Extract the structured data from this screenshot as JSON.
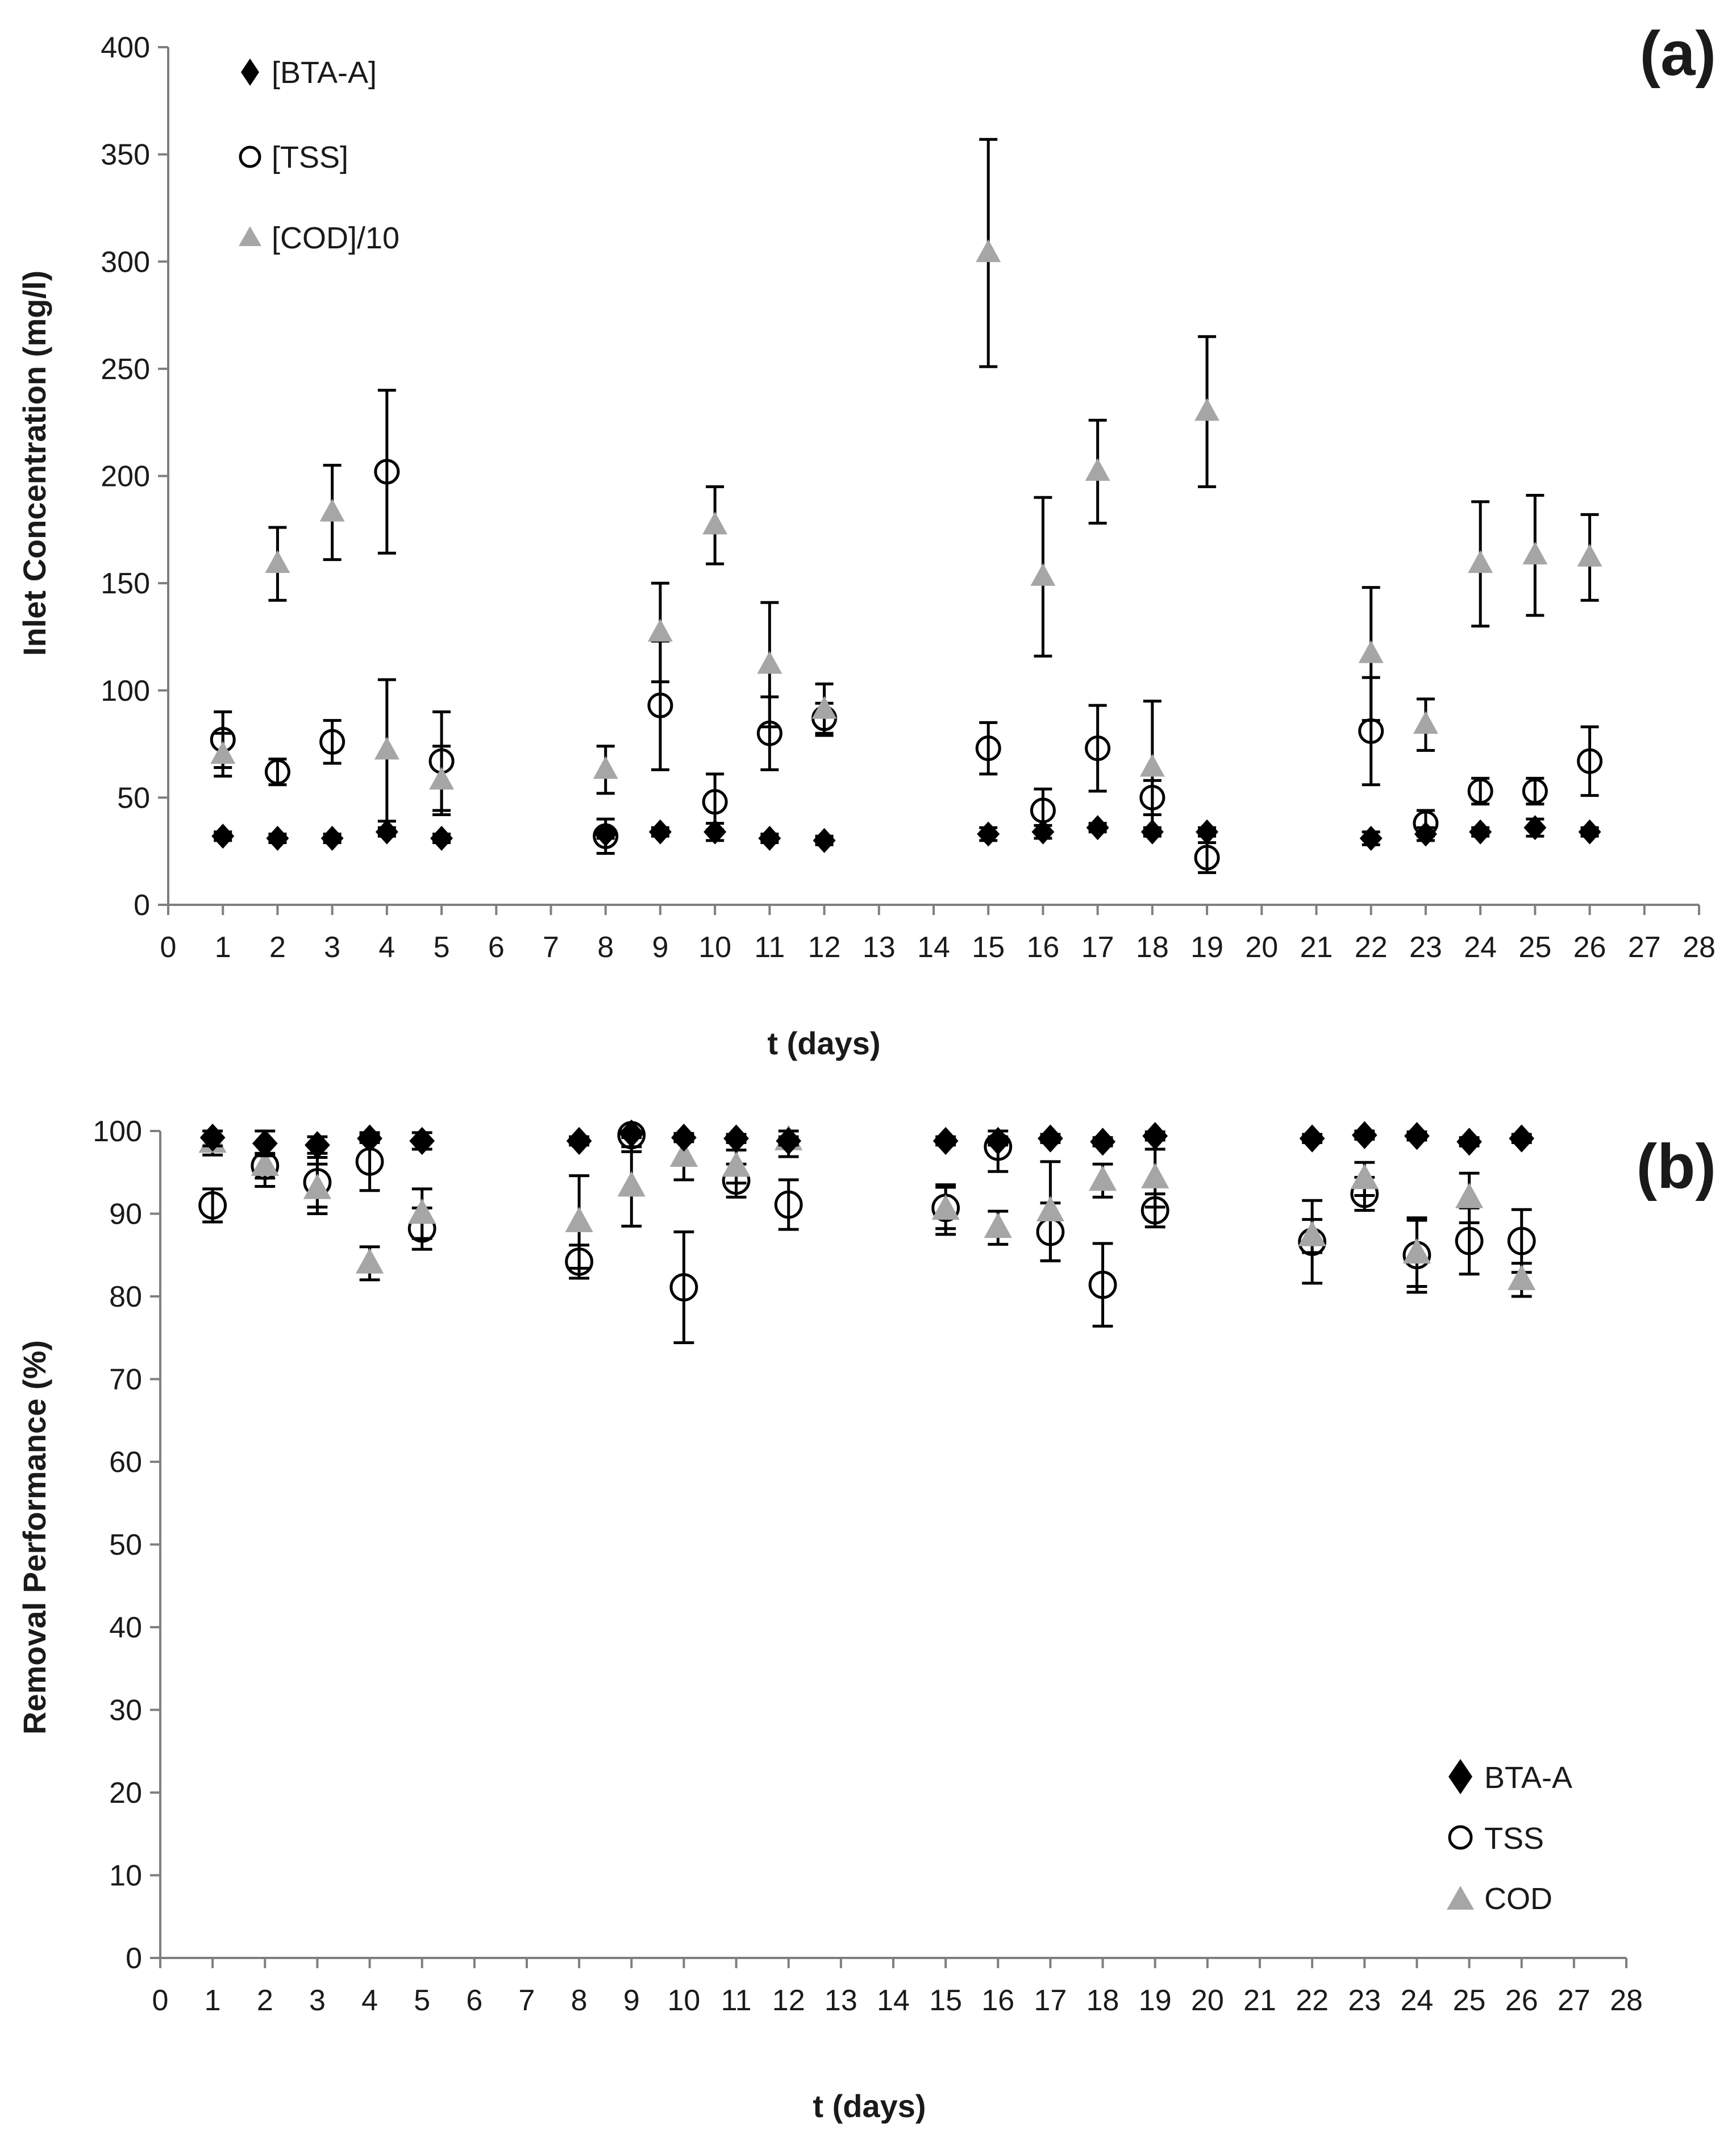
{
  "colors": {
    "bta": "#000000",
    "tss": "#000000",
    "cod": "#a6a6a6",
    "axis": "#7f7f7f",
    "errbar": "#000000"
  },
  "chart_data": [
    {
      "type": "scatter",
      "panel_label": "(a)",
      "xlabel": "t (days)",
      "ylabel": "Inlet Concentration (mg/l)",
      "xlim": [
        0,
        28
      ],
      "ylim": [
        0,
        400
      ],
      "xticks": [
        "0",
        "1",
        "2",
        "3",
        "4",
        "5",
        "6",
        "7",
        "8",
        "9",
        "10",
        "11",
        "12",
        "13",
        "14",
        "15",
        "16",
        "17",
        "18",
        "19",
        "20",
        "21",
        "22",
        "23",
        "24",
        "25",
        "26",
        "27",
        "28"
      ],
      "yticks": [
        "0",
        "50",
        "100",
        "150",
        "200",
        "250",
        "300",
        "350",
        "400"
      ],
      "legend_position": "top-left",
      "series": [
        {
          "name": "[BTA-A]",
          "marker": "diamond",
          "x": [
            1,
            2,
            3,
            4,
            5,
            8,
            9,
            10,
            11,
            12,
            15,
            16,
            17,
            18,
            19,
            22,
            23,
            24,
            25,
            26
          ],
          "y": [
            32,
            31,
            31,
            34,
            31,
            33,
            34,
            34,
            31,
            30,
            33,
            34,
            36,
            34,
            34,
            31,
            33,
            34,
            36,
            34
          ],
          "err": [
            2,
            2,
            2,
            2,
            2,
            2,
            2,
            4,
            2,
            2,
            3,
            3,
            2,
            2,
            2,
            3,
            3,
            2,
            4,
            2
          ]
        },
        {
          "name": "[TSS]",
          "marker": "circle-open",
          "x": [
            1,
            2,
            3,
            4,
            5,
            8,
            9,
            10,
            11,
            12,
            15,
            16,
            17,
            18,
            19,
            22,
            23,
            24,
            25,
            26
          ],
          "y": [
            77,
            62,
            76,
            202,
            67,
            32,
            93,
            48,
            80,
            87,
            73,
            44,
            73,
            50,
            22,
            81,
            38,
            53,
            53,
            67
          ],
          "err": [
            13,
            6,
            10,
            38,
            23,
            8,
            30,
            13,
            17,
            7,
            12,
            10,
            20,
            8,
            7,
            25,
            6,
            6,
            6,
            16
          ]
        },
        {
          "name": "[COD]/10",
          "marker": "triangle",
          "x": [
            1,
            2,
            3,
            4,
            5,
            8,
            9,
            10,
            11,
            12,
            15,
            16,
            17,
            18,
            19,
            22,
            23,
            24,
            25,
            26
          ],
          "y": [
            70,
            159,
            183,
            72,
            58,
            63,
            127,
            177,
            112,
            91,
            304,
            153,
            202,
            64,
            230,
            117,
            84,
            159,
            163,
            162
          ],
          "err": [
            10,
            17,
            22,
            33,
            16,
            11,
            23,
            18,
            29,
            12,
            53,
            37,
            24,
            31,
            35,
            31,
            12,
            29,
            28,
            20
          ]
        }
      ]
    },
    {
      "type": "scatter",
      "panel_label": "(b)",
      "xlabel": "t (days)",
      "ylabel": "Removal Performance (%)",
      "xlim": [
        0,
        28
      ],
      "ylim": [
        0,
        100
      ],
      "xticks": [
        "0",
        "1",
        "2",
        "3",
        "4",
        "5",
        "6",
        "7",
        "8",
        "9",
        "10",
        "11",
        "12",
        "13",
        "14",
        "15",
        "16",
        "17",
        "18",
        "19",
        "20",
        "21",
        "22",
        "23",
        "24",
        "25",
        "26",
        "27",
        "28"
      ],
      "yticks": [
        "0",
        "10",
        "20",
        "30",
        "40",
        "50",
        "60",
        "70",
        "80",
        "90",
        "100"
      ],
      "legend_position": "bottom-right",
      "series": [
        {
          "name": "BTA-A",
          "marker": "diamond",
          "x": [
            1,
            2,
            3,
            4,
            5,
            8,
            9,
            10,
            11,
            12,
            15,
            16,
            17,
            18,
            19,
            22,
            23,
            24,
            25,
            26
          ],
          "y": [
            99.2,
            98.5,
            98.3,
            99.1,
            98.8,
            98.8,
            99.7,
            99.2,
            99.1,
            98.8,
            98.8,
            98.8,
            99.1,
            98.7,
            99.4,
            99.1,
            99.5,
            99.4,
            98.7,
            99.1
          ],
          "err": [
            1,
            1.5,
            1,
            0.5,
            1,
            0.5,
            0.5,
            0.5,
            0.5,
            0.5,
            0.5,
            0.5,
            0.5,
            0.5,
            0.5,
            0.5,
            0.5,
            0.5,
            0.5,
            0.5
          ]
        },
        {
          "name": "TSS",
          "marker": "circle-open",
          "x": [
            1,
            2,
            3,
            4,
            5,
            8,
            9,
            10,
            11,
            12,
            15,
            16,
            17,
            18,
            19,
            22,
            23,
            24,
            25,
            26
          ],
          "y": [
            91,
            95.8,
            93.8,
            96.3,
            88.2,
            84.2,
            99.5,
            81.1,
            94,
            91.1,
            90.7,
            98.1,
            87.8,
            81.4,
            90.4,
            86.6,
            92.4,
            85,
            86.7,
            86.7
          ],
          "err": [
            2,
            2.5,
            3,
            3.5,
            2.5,
            2,
            2,
            6.7,
            2,
            3,
            2.5,
            3,
            3.5,
            5,
            2,
            5,
            2,
            4.5,
            4,
            3.8
          ]
        },
        {
          "name": "COD",
          "marker": "triangle",
          "x": [
            1,
            2,
            3,
            4,
            5,
            8,
            9,
            10,
            11,
            12,
            15,
            16,
            17,
            18,
            19,
            22,
            23,
            24,
            25,
            26
          ],
          "y": [
            98.6,
            95.8,
            93,
            84,
            90,
            89,
            93.3,
            96.9,
            95.7,
            98.9,
            90.5,
            88.3,
            90.3,
            94,
            94.3,
            87.3,
            94.2,
            85.2,
            91.9,
            82
          ],
          "err": [
            1.5,
            1.5,
            3,
            2,
            3,
            5.6,
            4.8,
            2.8,
            2,
            2,
            3,
            2,
            6,
            2,
            3.5,
            2,
            2,
            4,
            3,
            2
          ]
        }
      ]
    }
  ]
}
